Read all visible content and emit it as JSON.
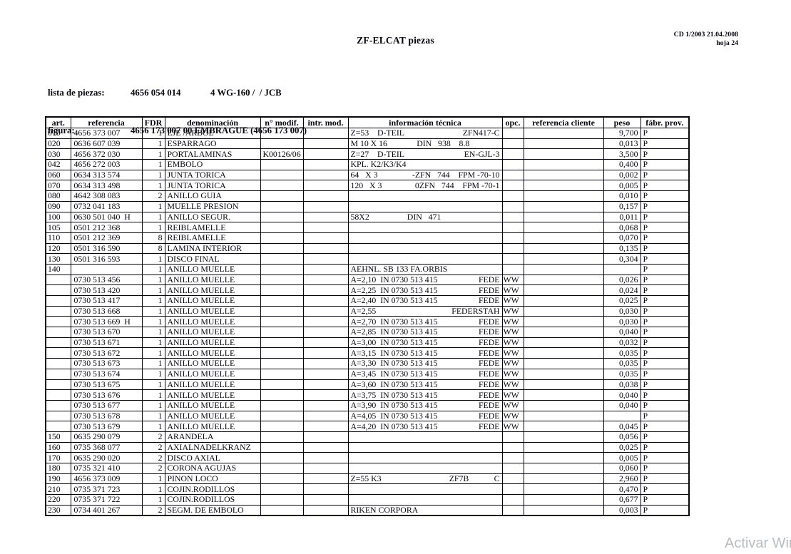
{
  "header": {
    "title": "ZF-ELCAT piezas",
    "cd_info": "CD 1/2003 21.04.2008",
    "sheet": "hoja 24",
    "parts_list_label": "lista de piezas:",
    "parts_list_number": "4656 054 014",
    "parts_list_model": "4 WG-160 /  / JCB",
    "figure_label": "figura:",
    "figure_value": "4656 173 007 00 EMBRAGUE (4656 173 007)"
  },
  "watermark": {
    "text": "Activar Win"
  },
  "table": {
    "headers": [
      "art.",
      "referencia",
      "FDR",
      "denominación",
      "n° modif.",
      "intr. mod.",
      "información técnica",
      "opc.",
      "referencia cliente",
      "peso",
      "fábr. prov."
    ],
    "row_key_order": [
      "art",
      "referencia",
      "fdr",
      "denominacion",
      "n_modif",
      "intr_mod",
      "info_left",
      "info_right",
      "opc",
      "referencia_cliente",
      "peso",
      "fabr_prov"
    ],
    "rows": [
      [
        "010",
        "4656 373 007",
        "1",
        "EJE /ARBOL",
        "",
        "",
        "Z=53    D-TEIL",
        "ZFN417-C",
        "",
        "",
        "9,700",
        "P"
      ],
      [
        "020",
        "0636 607 039",
        "1",
        "ESPARRAGO",
        "",
        "",
        "M 10 X 16              DIN   938    8.8",
        "",
        "",
        "",
        "0,013",
        "P"
      ],
      [
        "030",
        "4656 372 030",
        "1",
        "PORTALAMINAS",
        "K00126/06",
        "",
        "Z=27    D-TEIL",
        "EN-GJL-3",
        "",
        "",
        "3,500",
        "P"
      ],
      [
        "042",
        "4656 272 003",
        "1",
        "EMBOLO",
        "",
        "",
        "KPL. K2/K3/K4",
        "",
        "",
        "",
        "0,400",
        "P"
      ],
      [
        "060",
        "0634 313 574",
        "1",
        "JUNTA TORICA",
        "",
        "",
        "64   X 3",
        "-ZFN   744    FPM -70-10",
        "",
        "",
        "0,002",
        "P"
      ],
      [
        "070",
        "0634 313 498",
        "1",
        "JUNTA TORICA",
        "",
        "",
        "120   X 3",
        "0ZFN   744    FPM -70-1",
        "",
        "",
        "0,005",
        "P"
      ],
      [
        "080",
        "4642 308 083",
        "2",
        "ANILLO GUIA",
        "",
        "",
        "",
        "",
        "",
        "",
        "0,010",
        "P"
      ],
      [
        "090",
        "0732 041 183",
        "1",
        "MUELLE PRESION",
        "",
        "",
        "",
        "",
        "",
        "",
        "0,157",
        "P"
      ],
      [
        "100",
        "0630 501 040  H",
        "1",
        "ANILLO SEGUR.",
        "",
        "",
        "58X2                  DIN   471",
        "",
        "",
        "",
        "0,011",
        "P"
      ],
      [
        "105",
        "0501 212 368",
        "1",
        "REIBLAMELLE",
        "",
        "",
        "",
        "",
        "",
        "",
        "0,068",
        "P"
      ],
      [
        "110",
        "0501 212 369",
        "8",
        "REIBLAMELLE",
        "",
        "",
        "",
        "",
        "",
        "",
        "0,070",
        "P"
      ],
      [
        "120",
        "0501 316 590",
        "8",
        "LAMINA INTERIOR",
        "",
        "",
        "",
        "",
        "",
        "",
        "0,135",
        "P"
      ],
      [
        "130",
        "0501 316 593",
        "1",
        "DISCO FINAL",
        "",
        "",
        "",
        "",
        "",
        "",
        "0,304",
        "P"
      ],
      [
        "140",
        "",
        "1",
        "ANILLO MUELLE",
        "",
        "",
        "AEHNL. SB 133 FA.ORBIS",
        "",
        "",
        "",
        "",
        "P"
      ],
      [
        "",
        "0730 513 456",
        "1",
        "ANILLO MUELLE",
        "",
        "",
        "A=2,10  IN 0730 513 415",
        "FEDE",
        "WW",
        "",
        "0,026",
        "P"
      ],
      [
        "",
        "0730 513 420",
        "1",
        "ANILLO MUELLE",
        "",
        "",
        "A=2,25  IN 0730 513 415",
        "FEDE",
        "WW",
        "",
        "0,024",
        "P"
      ],
      [
        "",
        "0730 513 417",
        "1",
        "ANILLO MUELLE",
        "",
        "",
        "A=2,40  IN 0730 513 415",
        "FEDE",
        "WW",
        "",
        "0,025",
        "P"
      ],
      [
        "",
        "0730 513 668",
        "1",
        "ANILLO MUELLE",
        "",
        "",
        "A=2,55",
        "FEDERSTAH",
        "WW",
        "",
        "0,030",
        "P"
      ],
      [
        "",
        "0730 513 669  H",
        "1",
        "ANILLO MUELLE",
        "",
        "",
        "A=2,70  IN 0730 513 415",
        "FEDE",
        "WW",
        "",
        "0,030",
        "P"
      ],
      [
        "",
        "0730 513 670",
        "1",
        "ANILLO MUELLE",
        "",
        "",
        "A=2,85  IN 0730 513 415",
        "FEDE",
        "WW",
        "",
        "0,040",
        "P"
      ],
      [
        "",
        "0730 513 671",
        "1",
        "ANILLO MUELLE",
        "",
        "",
        "A=3,00  IN 0730 513 415",
        "FEDE",
        "WW",
        "",
        "0,032",
        "P"
      ],
      [
        "",
        "0730 513 672",
        "1",
        "ANILLO MUELLE",
        "",
        "",
        "A=3,15  IN 0730 513 415",
        "FEDE",
        "WW",
        "",
        "0,035",
        "P"
      ],
      [
        "",
        "0730 513 673",
        "1",
        "ANILLO MUELLE",
        "",
        "",
        "A=3,30  IN 0730 513 415",
        "FEDE",
        "WW",
        "",
        "0,035",
        "P"
      ],
      [
        "",
        "0730 513 674",
        "1",
        "ANILLO MUELLE",
        "",
        "",
        "A=3,45  IN 0730 513 415",
        "FEDE",
        "WW",
        "",
        "0,035",
        "P"
      ],
      [
        "",
        "0730 513 675",
        "1",
        "ANILLO MUELLE",
        "",
        "",
        "A=3,60  IN 0730 513 415",
        "FEDE",
        "WW",
        "",
        "0,038",
        "P"
      ],
      [
        "",
        "0730 513 676",
        "1",
        "ANILLO MUELLE",
        "",
        "",
        "A=3,75  IN 0730 513 415",
        "FEDE",
        "WW",
        "",
        "0,040",
        "P"
      ],
      [
        "",
        "0730 513 677",
        "1",
        "ANILLO MUELLE",
        "",
        "",
        "A=3,90  IN 0730 513 415",
        "FEDE",
        "WW",
        "",
        "0,040",
        "P"
      ],
      [
        "",
        "0730 513 678",
        "1",
        "ANILLO MUELLE",
        "",
        "",
        "A=4,05  IN 0730 513 415",
        "FEDE",
        "WW",
        "",
        "",
        "P"
      ],
      [
        "",
        "0730 513 679",
        "1",
        "ANILLO MUELLE",
        "",
        "",
        "A=4,20  IN 0730 513 415",
        "FEDE",
        "WW",
        "",
        "0,045",
        "P"
      ],
      [
        "150",
        "0635 290 079",
        "2",
        "ARANDELA",
        "",
        "",
        "",
        "",
        "",
        "",
        "0,056",
        "P"
      ],
      [
        "160",
        "0735 368 077",
        "2",
        "AXIALNADELKRANZ",
        "",
        "",
        "",
        "",
        "",
        "",
        "0,025",
        "P"
      ],
      [
        "170",
        "0635 290 020",
        "2",
        "DISCO AXIAL",
        "",
        "",
        "",
        "",
        "",
        "",
        "0,005",
        "P"
      ],
      [
        "180",
        "0735 321 410",
        "2",
        "CORONA AGUJAS",
        "",
        "",
        "",
        "",
        "",
        "",
        "0,060",
        "P"
      ],
      [
        "190",
        "4656 373 009",
        "1",
        "PINON LOCO",
        "",
        "",
        "Z=55 K3",
        "ZF7B            C",
        "",
        "",
        "2,960",
        "P"
      ],
      [
        "210",
        "0735 371 723",
        "1",
        "COJIN.RODILLOS",
        "",
        "",
        "",
        "",
        "",
        "",
        "0,470",
        "P"
      ],
      [
        "220",
        "0735 371 722",
        "1",
        "COJIN.RODILLOS",
        "",
        "",
        "",
        "",
        "",
        "",
        "0,677",
        "P"
      ],
      [
        "230",
        "0734 401 267",
        "2",
        "SEGM. DE EMBOLO",
        "",
        "",
        "RIKEN CORPORA",
        "",
        "",
        "",
        "0,003",
        "P"
      ]
    ]
  }
}
